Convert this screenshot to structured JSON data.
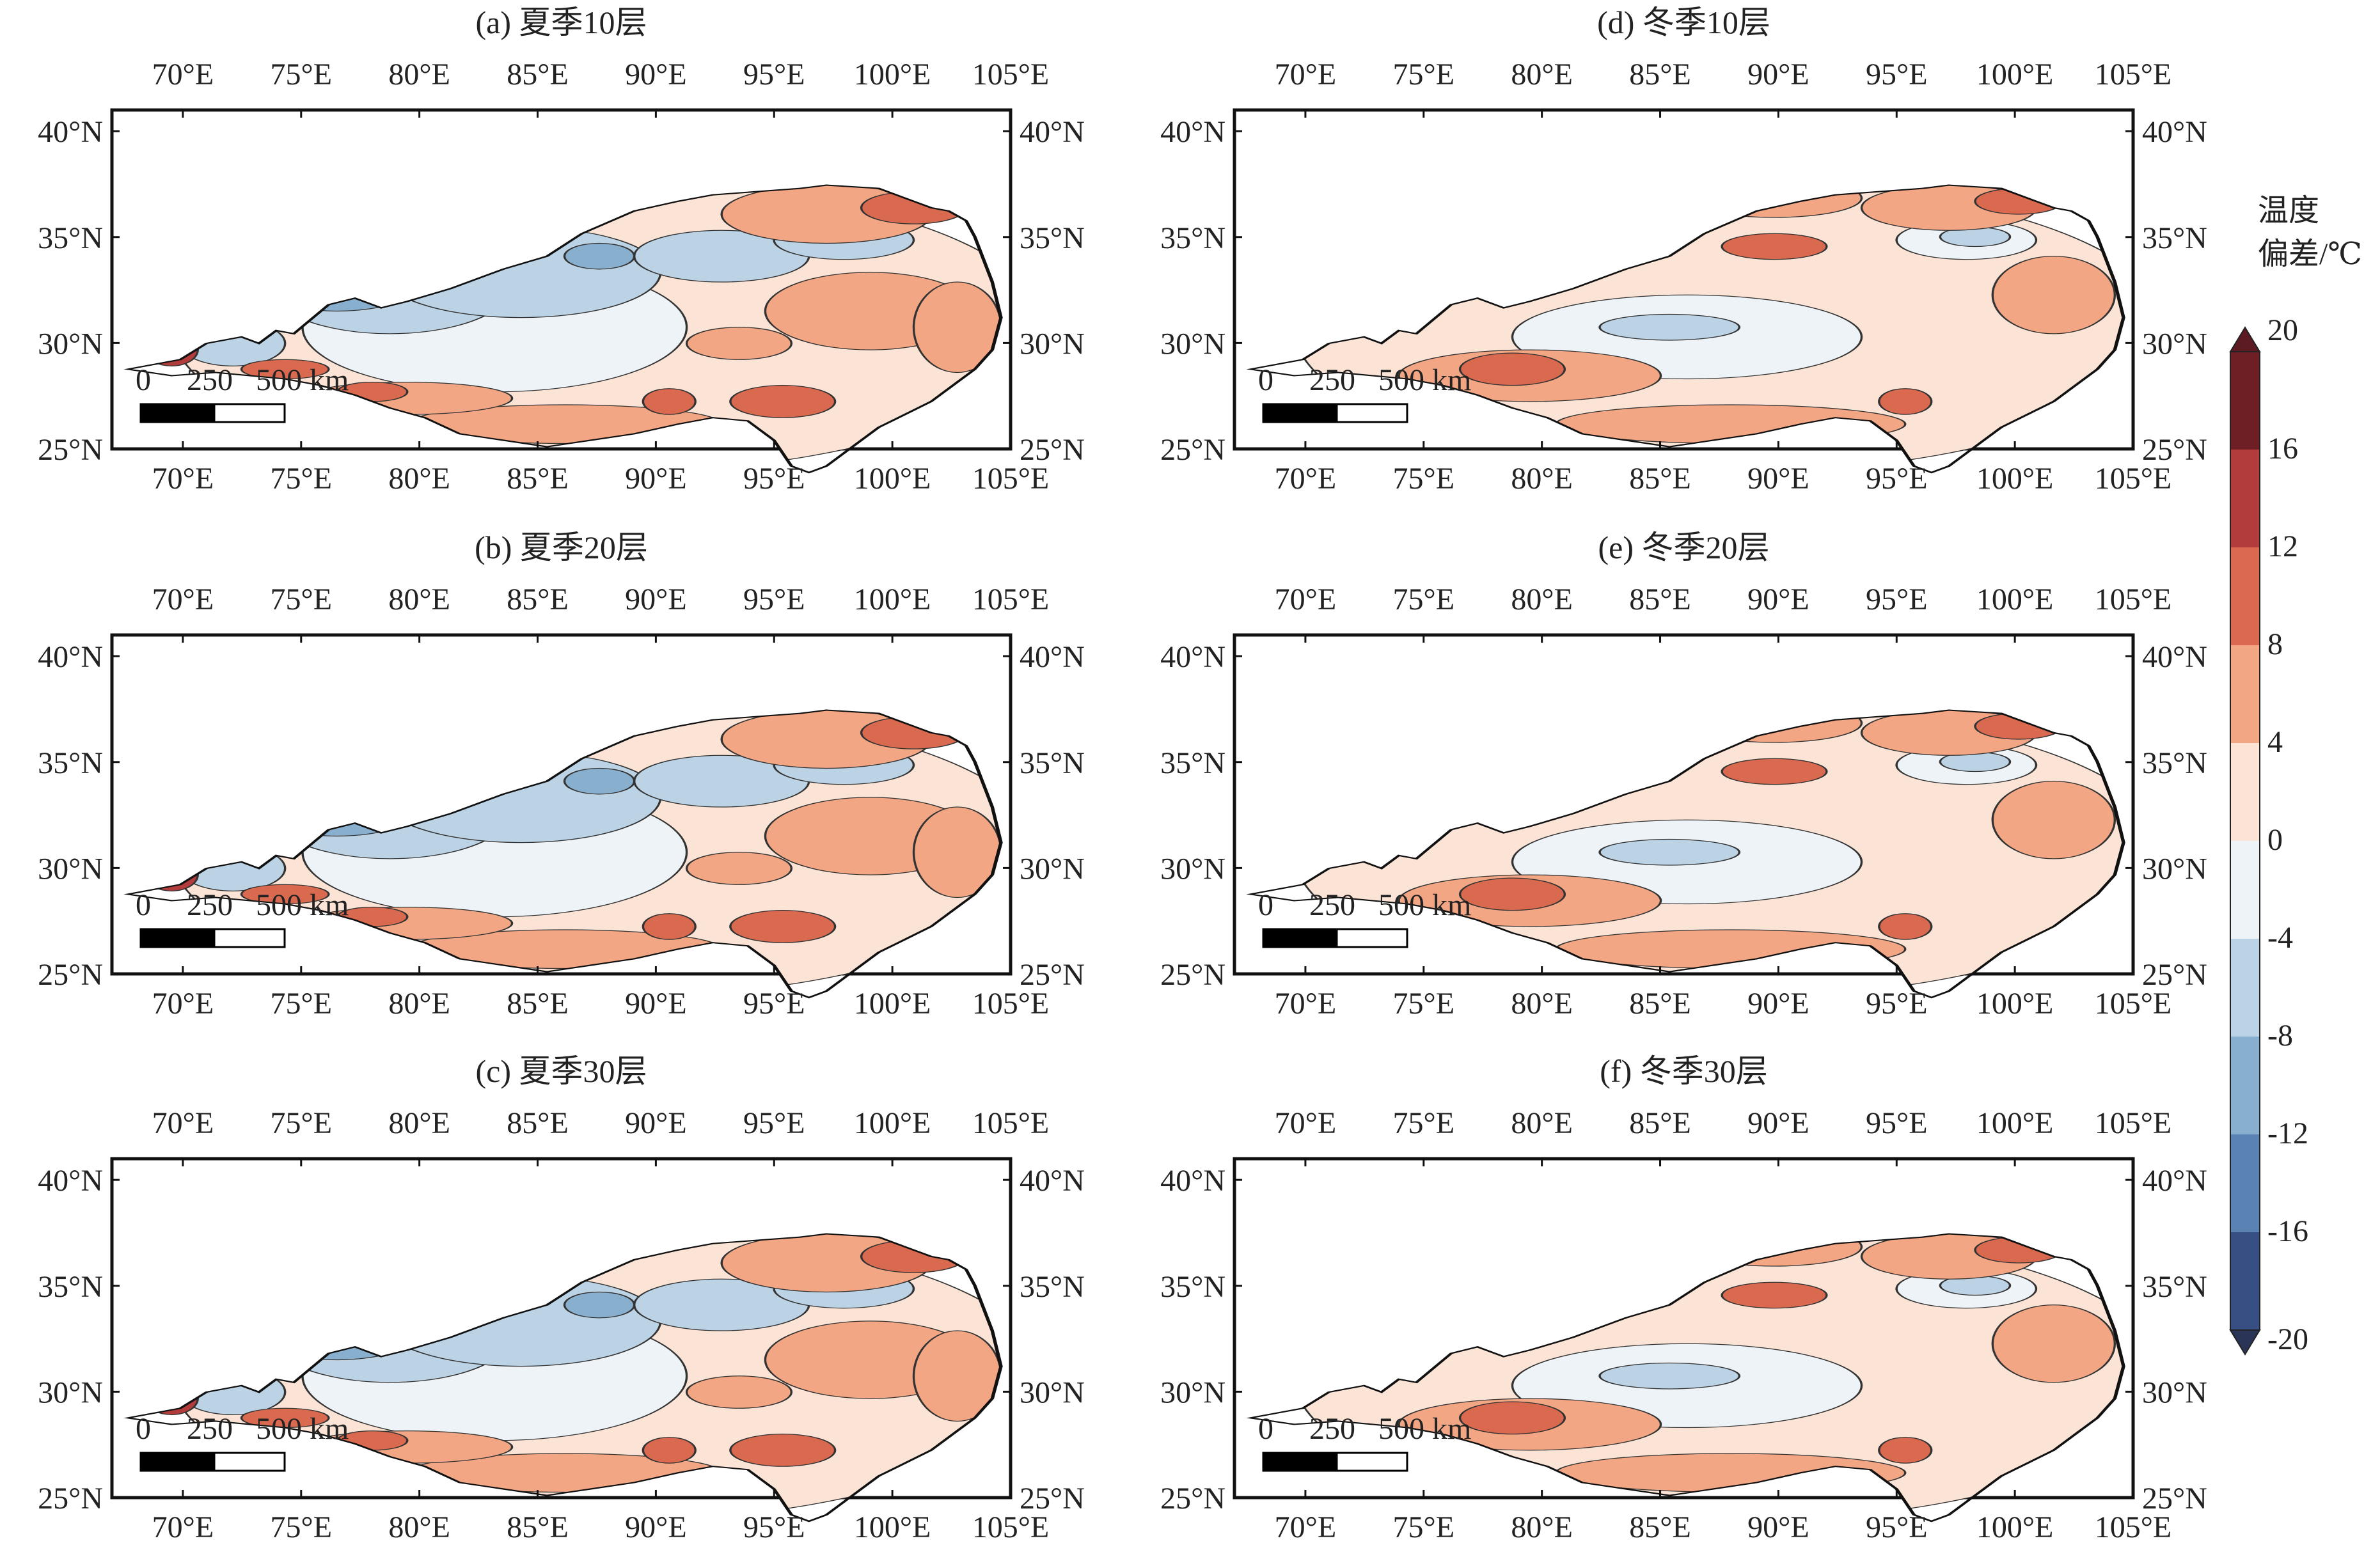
{
  "panels": [
    {
      "id": "a",
      "title": "(a) 夏季10层",
      "season": "summer"
    },
    {
      "id": "d",
      "title": "(d) 冬季10层",
      "season": "winter"
    },
    {
      "id": "b",
      "title": "(b) 夏季20层",
      "season": "summer"
    },
    {
      "id": "e",
      "title": "(e) 冬季20层",
      "season": "winter"
    },
    {
      "id": "c",
      "title": "(c) 夏季30层",
      "season": "summer"
    },
    {
      "id": "f",
      "title": "(f) 冬季30层",
      "season": "winter"
    }
  ],
  "axes": {
    "lon_labels": [
      "70°E",
      "75°E",
      "80°E",
      "85°E",
      "90°E",
      "95°E",
      "100°E",
      "105°E"
    ],
    "lat_labels": [
      "40°N",
      "35°N",
      "30°N",
      "25°N"
    ]
  },
  "scale_bar": {
    "label_0": "0",
    "label_250": "250",
    "label_500": "500 km"
  },
  "colorbar": {
    "title_line1": "温度",
    "title_line2": "偏差/℃",
    "levels": [
      "20",
      "16",
      "12",
      "8",
      "4",
      "0",
      "-4",
      "-8",
      "-12",
      "-16",
      "-20"
    ],
    "colors": [
      "#6e1f25",
      "#b23b3b",
      "#d9694f",
      "#f2a684",
      "#fbe4d6",
      "#eef3f8",
      "#bcd3e5",
      "#89afcf",
      "#5a83b3",
      "#374f83"
    ],
    "extend_top_color": "#5c1a22",
    "extend_bottom_color": "#2a3456"
  },
  "chart_data": {
    "type": "heatmap",
    "variable": "温度偏差/℃",
    "lon_range": [
      67,
      105
    ],
    "lat_range": [
      25,
      41
    ],
    "levels": [
      -20,
      -16,
      -12,
      -8,
      -4,
      0,
      4,
      8,
      12,
      16,
      20
    ]
  }
}
